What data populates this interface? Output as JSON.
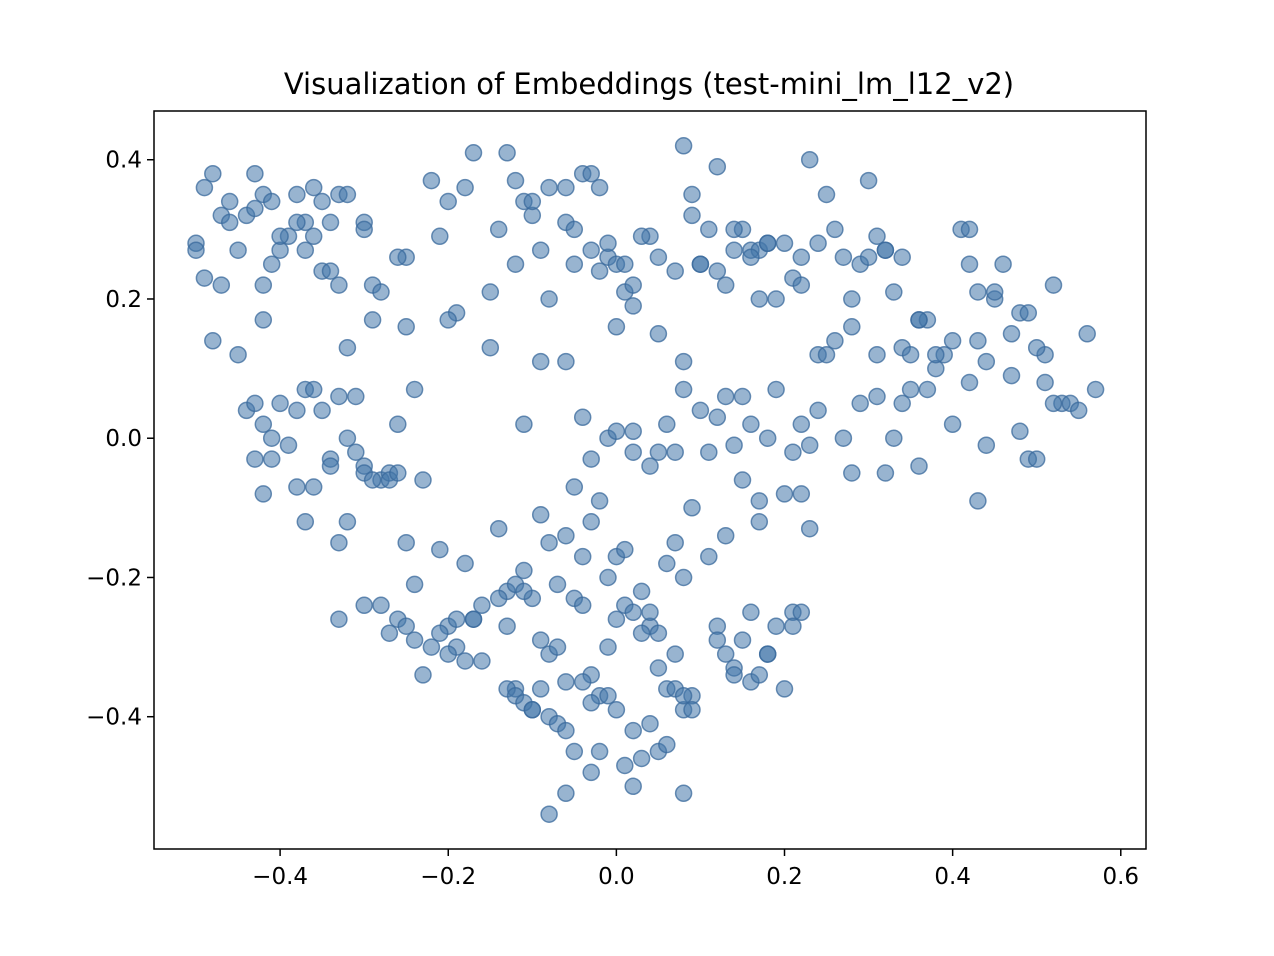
{
  "chart_data": {
    "type": "scatter",
    "title": "Visualization of Embeddings (test-mini_lm_l12_v2)",
    "xlabel": "",
    "ylabel": "",
    "xlim": [
      -0.55,
      0.63
    ],
    "ylim": [
      -0.59,
      0.47
    ],
    "xticks": [
      -0.4,
      -0.2,
      0.0,
      0.2,
      0.4,
      0.6
    ],
    "xtick_labels": [
      "−0.4",
      "−0.2",
      "0.0",
      "0.2",
      "0.4",
      "0.6"
    ],
    "yticks": [
      0.4,
      0.2,
      0.0,
      -0.2,
      -0.4
    ],
    "ytick_labels": [
      "0.4",
      "0.2",
      "0.0",
      "−0.2",
      "−0.4"
    ],
    "grid": false,
    "legend": "none",
    "point_color": "#4477aa",
    "point_alpha": 0.55,
    "series": [
      {
        "x": [
          -0.5,
          -0.49,
          -0.48,
          -0.47,
          -0.46,
          -0.45,
          -0.44,
          -0.43,
          -0.42,
          -0.42,
          -0.41,
          -0.4,
          -0.39,
          -0.38,
          -0.37,
          -0.36,
          -0.35,
          -0.34,
          -0.33,
          -0.32,
          -0.3,
          -0.29,
          -0.28,
          -0.25,
          -0.22,
          -0.2,
          -0.19,
          -0.17,
          -0.15,
          -0.13,
          -0.12,
          -0.11,
          -0.1,
          -0.09,
          -0.08,
          -0.06,
          -0.05,
          -0.04,
          -0.03,
          -0.02,
          -0.01,
          0.0,
          0.01,
          0.02,
          0.04,
          0.05,
          0.07,
          0.08,
          0.09,
          0.1,
          0.11,
          0.12,
          0.13,
          0.14,
          0.15,
          0.16,
          0.17,
          0.18,
          0.19,
          0.21,
          0.22,
          0.23,
          0.24,
          0.25,
          0.26,
          0.27,
          0.28,
          0.29,
          0.3,
          0.31,
          0.32,
          0.33,
          0.34,
          0.36,
          0.37,
          0.41,
          0.42,
          0.43,
          0.45,
          0.46,
          0.47,
          0.48,
          0.51,
          0.52,
          0.56,
          -0.5,
          -0.49,
          -0.48,
          -0.47,
          -0.46,
          -0.45,
          -0.43,
          -0.42,
          -0.41,
          -0.4,
          -0.38,
          -0.37,
          -0.36,
          -0.35,
          -0.34,
          -0.33,
          -0.32,
          -0.3,
          -0.29,
          -0.26,
          -0.25,
          -0.21,
          -0.2,
          -0.18,
          -0.15,
          -0.14,
          -0.12,
          -0.1,
          -0.08,
          -0.06,
          -0.05,
          -0.03,
          -0.02,
          -0.01,
          0.0,
          0.01,
          0.02,
          0.03,
          0.05,
          0.08,
          0.09,
          0.1,
          0.12,
          0.14,
          0.16,
          0.17,
          0.18,
          0.2,
          0.22,
          0.24,
          0.26,
          0.28,
          0.3,
          0.31,
          0.32,
          0.34,
          0.35,
          0.36,
          0.38,
          0.39,
          0.4,
          0.42,
          0.43,
          0.44,
          0.45,
          0.47,
          0.49,
          0.5,
          0.51,
          0.53,
          0.54,
          0.55,
          0.57,
          -0.44,
          -0.43,
          -0.42,
          -0.41,
          -0.4,
          -0.39,
          -0.38,
          -0.37,
          -0.36,
          -0.35,
          -0.34,
          -0.33,
          -0.32,
          -0.31,
          -0.3,
          -0.28,
          -0.27,
          -0.26,
          -0.24,
          -0.23,
          -0.11,
          -0.09,
          -0.06,
          -0.04,
          -0.03,
          -0.01,
          0.0,
          0.02,
          0.04,
          0.05,
          0.06,
          0.07,
          0.08,
          0.1,
          0.11,
          0.12,
          0.13,
          0.14,
          0.15,
          0.16,
          0.17,
          0.18,
          0.19,
          0.21,
          0.22,
          0.23,
          0.24,
          0.25,
          0.27,
          0.28,
          0.29,
          0.31,
          0.32,
          0.33,
          0.34,
          0.35,
          0.36,
          0.37,
          0.38,
          0.4,
          0.42,
          0.43,
          0.44,
          0.48,
          0.49,
          0.5,
          0.52,
          -0.43,
          -0.42,
          -0.41,
          -0.38,
          -0.37,
          -0.36,
          -0.34,
          -0.33,
          -0.32,
          -0.31,
          -0.3,
          -0.29,
          -0.27,
          -0.26,
          -0.25,
          -0.24,
          -0.21,
          -0.2,
          -0.19,
          -0.18,
          -0.17,
          -0.16,
          -0.14,
          -0.13,
          -0.12,
          -0.11,
          -0.1,
          -0.09,
          -0.08,
          -0.07,
          -0.06,
          -0.05,
          -0.04,
          -0.03,
          -0.02,
          -0.01,
          0.0,
          0.01,
          0.02,
          0.03,
          0.04,
          0.05,
          0.06,
          0.07,
          0.08,
          0.09,
          0.11,
          0.12,
          0.13,
          0.14,
          0.15,
          0.16,
          0.17,
          0.18,
          0.2,
          0.21,
          0.22,
          0.23,
          -0.33,
          -0.3,
          -0.28,
          -0.27,
          -0.26,
          -0.25,
          -0.24,
          -0.23,
          -0.22,
          -0.21,
          -0.2,
          -0.19,
          -0.18,
          -0.17,
          -0.16,
          -0.14,
          -0.13,
          -0.12,
          -0.11,
          -0.1,
          -0.09,
          -0.08,
          -0.07,
          -0.06,
          -0.05,
          -0.04,
          -0.03,
          -0.02,
          -0.01,
          0.0,
          0.01,
          0.02,
          0.03,
          0.04,
          0.05,
          0.06,
          0.07,
          0.08,
          0.09,
          0.12,
          0.13,
          0.14,
          0.15,
          0.16,
          0.17,
          0.18,
          0.19,
          0.2,
          0.21,
          0.22,
          -0.13,
          -0.12,
          -0.11,
          -0.1,
          -0.09,
          -0.08,
          -0.07,
          -0.06,
          -0.05,
          -0.04,
          -0.03,
          -0.02,
          -0.01,
          0.0,
          0.01,
          0.02,
          0.03,
          0.04,
          0.05,
          0.06,
          0.07,
          0.08,
          0.09,
          -0.08,
          -0.06,
          -0.03,
          0.02,
          0.08
        ],
        "y": [
          0.28,
          0.36,
          0.38,
          0.32,
          0.34,
          0.27,
          0.32,
          0.38,
          0.35,
          0.22,
          0.34,
          0.27,
          0.29,
          0.35,
          0.31,
          0.36,
          0.34,
          0.31,
          0.35,
          0.35,
          0.31,
          0.22,
          0.21,
          0.26,
          0.37,
          0.34,
          0.18,
          0.41,
          0.21,
          0.41,
          0.37,
          0.34,
          0.32,
          0.27,
          0.2,
          0.36,
          0.25,
          0.38,
          0.27,
          0.36,
          0.26,
          0.25,
          0.21,
          0.22,
          0.29,
          0.26,
          0.24,
          0.42,
          0.35,
          0.25,
          0.3,
          0.39,
          0.22,
          0.27,
          0.3,
          0.27,
          0.27,
          0.28,
          0.2,
          0.23,
          0.22,
          0.4,
          0.28,
          0.35,
          0.3,
          0.26,
          0.2,
          0.25,
          0.37,
          0.29,
          0.27,
          0.21,
          0.26,
          0.17,
          0.17,
          0.3,
          0.25,
          0.21,
          0.2,
          0.25,
          0.15,
          0.18,
          0.12,
          0.22,
          0.15,
          0.27,
          0.23,
          0.14,
          0.22,
          0.31,
          0.12,
          0.33,
          0.17,
          0.25,
          0.29,
          0.31,
          0.27,
          0.29,
          0.24,
          0.24,
          0.22,
          0.13,
          0.3,
          0.17,
          0.26,
          0.16,
          0.29,
          0.17,
          0.36,
          0.13,
          0.3,
          0.25,
          0.34,
          0.36,
          0.31,
          0.3,
          0.38,
          0.24,
          0.28,
          0.16,
          0.25,
          0.19,
          0.29,
          0.15,
          0.11,
          0.32,
          0.25,
          0.24,
          0.3,
          0.26,
          0.2,
          0.28,
          0.28,
          0.26,
          0.12,
          0.14,
          0.16,
          0.26,
          0.12,
          0.27,
          0.13,
          0.12,
          0.17,
          0.1,
          0.12,
          0.14,
          0.3,
          0.14,
          0.11,
          0.21,
          0.09,
          0.18,
          0.13,
          0.08,
          0.05,
          0.05,
          0.04,
          0.07,
          0.04,
          0.05,
          0.02,
          0.0,
          0.05,
          -0.01,
          0.04,
          0.07,
          0.07,
          0.04,
          -0.03,
          0.06,
          0.0,
          0.06,
          -0.04,
          -0.06,
          -0.05,
          0.02,
          0.07,
          -0.06,
          0.02,
          0.11,
          0.11,
          0.03,
          -0.03,
          0.0,
          0.01,
          0.01,
          -0.04,
          -0.02,
          0.02,
          -0.02,
          0.07,
          0.04,
          -0.02,
          0.03,
          0.06,
          -0.01,
          0.06,
          0.02,
          -0.09,
          0.0,
          0.07,
          -0.02,
          0.02,
          -0.01,
          0.04,
          0.12,
          0.0,
          -0.05,
          0.05,
          0.06,
          -0.05,
          0.0,
          0.05,
          0.07,
          -0.04,
          0.07,
          0.12,
          0.02,
          0.08,
          -0.09,
          -0.01,
          0.01,
          -0.03,
          -0.03,
          0.05,
          -0.03,
          -0.08,
          -0.03,
          -0.07,
          -0.12,
          -0.07,
          -0.04,
          -0.15,
          -0.12,
          -0.02,
          -0.05,
          -0.06,
          -0.06,
          -0.05,
          -0.15,
          -0.21,
          -0.16,
          -0.27,
          -0.3,
          -0.18,
          -0.26,
          -0.32,
          -0.13,
          -0.22,
          -0.21,
          -0.19,
          -0.23,
          -0.11,
          -0.15,
          -0.21,
          -0.14,
          -0.07,
          -0.17,
          -0.12,
          -0.09,
          -0.2,
          -0.17,
          -0.16,
          -0.02,
          -0.22,
          -0.27,
          -0.28,
          -0.18,
          -0.15,
          -0.2,
          -0.1,
          -0.17,
          -0.27,
          -0.14,
          -0.33,
          -0.06,
          -0.25,
          -0.12,
          -0.31,
          -0.08,
          -0.25,
          -0.08,
          -0.13,
          -0.26,
          -0.24,
          -0.24,
          -0.28,
          -0.26,
          -0.27,
          -0.29,
          -0.34,
          -0.3,
          -0.28,
          -0.31,
          -0.26,
          -0.32,
          -0.26,
          -0.24,
          -0.23,
          -0.27,
          -0.36,
          -0.22,
          -0.39,
          -0.29,
          -0.31,
          -0.3,
          -0.35,
          -0.23,
          -0.24,
          -0.34,
          -0.37,
          -0.3,
          -0.26,
          -0.24,
          -0.25,
          -0.28,
          -0.25,
          -0.33,
          -0.36,
          -0.31,
          -0.39,
          -0.37,
          -0.29,
          -0.31,
          -0.34,
          -0.29,
          -0.35,
          -0.34,
          -0.31,
          -0.27,
          -0.36,
          -0.27,
          -0.25,
          -0.36,
          -0.37,
          -0.38,
          -0.39,
          -0.36,
          -0.4,
          -0.41,
          -0.42,
          -0.45,
          -0.35,
          -0.48,
          -0.45,
          -0.37,
          -0.39,
          -0.47,
          -0.42,
          -0.46,
          -0.41,
          -0.45,
          -0.44,
          -0.36,
          -0.37,
          -0.39,
          -0.54,
          -0.51,
          -0.38,
          -0.5,
          -0.51
        ]
      }
    ]
  }
}
